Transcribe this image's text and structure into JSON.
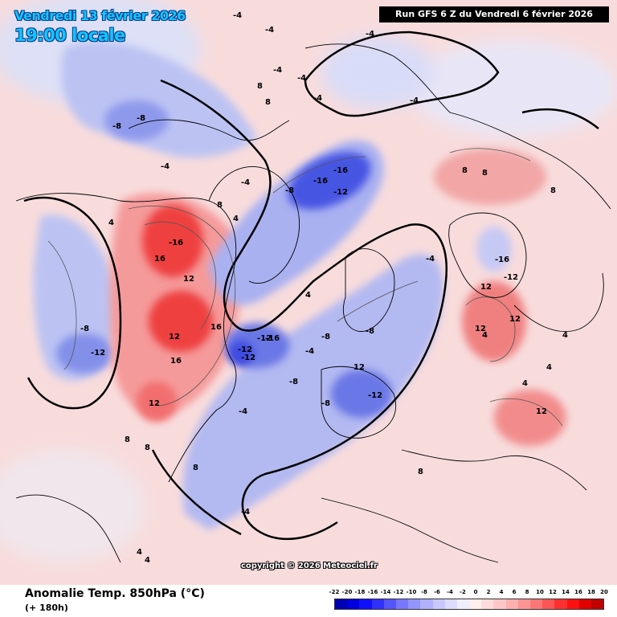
{
  "header": {
    "valid_date": "Vendredi 13 février 2026",
    "valid_time": "19:00 locale",
    "run_info": "Run GFS 6 Z du Vendredi 6 février 2026"
  },
  "map": {
    "copyright": "copyright © 2026 Meteociel.fr",
    "projection": "polar stereographic (north pole)",
    "zero_contour_color": "#000000",
    "contour_labels": [
      {
        "text": "-4"
      },
      {
        "text": "-4"
      },
      {
        "text": "-4"
      },
      {
        "text": "-4"
      },
      {
        "text": "-8"
      },
      {
        "text": "-8"
      },
      {
        "text": "-4"
      },
      {
        "text": "8"
      },
      {
        "text": "8"
      },
      {
        "text": "-4"
      },
      {
        "text": "-16"
      },
      {
        "text": "-16"
      },
      {
        "text": "-12"
      },
      {
        "text": "-8"
      },
      {
        "text": "-4"
      },
      {
        "text": "-4"
      },
      {
        "text": "-4"
      },
      {
        "text": "-16"
      },
      {
        "text": "16"
      },
      {
        "text": "12"
      },
      {
        "text": "16"
      },
      {
        "text": "16"
      },
      {
        "text": "12"
      },
      {
        "text": "12"
      },
      {
        "text": "-8"
      },
      {
        "text": "-12"
      },
      {
        "text": "8"
      },
      {
        "text": "4"
      },
      {
        "text": "-12"
      },
      {
        "text": "-16"
      },
      {
        "text": "-12"
      },
      {
        "text": "-12"
      },
      {
        "text": "-8"
      },
      {
        "text": "-4"
      },
      {
        "text": "4"
      },
      {
        "text": "-4"
      },
      {
        "text": "-8"
      },
      {
        "text": "-8"
      },
      {
        "text": "-12"
      },
      {
        "text": "-8"
      },
      {
        "text": "-4"
      },
      {
        "text": "-4"
      },
      {
        "text": "8"
      },
      {
        "text": "8"
      },
      {
        "text": "8"
      },
      {
        "text": "12"
      },
      {
        "text": "-16"
      },
      {
        "text": "-12"
      },
      {
        "text": "12"
      },
      {
        "text": "12"
      },
      {
        "text": "12"
      },
      {
        "text": "8"
      },
      {
        "text": "12"
      },
      {
        "text": "4"
      },
      {
        "text": "4"
      },
      {
        "text": "8"
      },
      {
        "text": "8"
      },
      {
        "text": "8"
      },
      {
        "text": "4"
      },
      {
        "text": "4"
      },
      {
        "text": "4"
      },
      {
        "text": "4"
      },
      {
        "text": "4"
      }
    ]
  },
  "legend": {
    "field_title": "Anomalie Temp. 850hPa (°C)",
    "forecast_hour": "(+ 180h)",
    "scale_values": [
      "-22",
      "-20",
      "-18",
      "-16",
      "-14",
      "-12",
      "-10",
      "-8",
      "-6",
      "-4",
      "-2",
      "0",
      "2",
      "4",
      "6",
      "8",
      "10",
      "12",
      "14",
      "16",
      "18",
      "20"
    ],
    "scale_colors": [
      "#0000b4",
      "#0000dc",
      "#1010ff",
      "#3030ff",
      "#5555ff",
      "#7777ff",
      "#9494ff",
      "#b0b0ff",
      "#c8c8ff",
      "#dcdcff",
      "#eeeeff",
      "#ffeeee",
      "#ffdcdc",
      "#ffc8c8",
      "#ffb0b0",
      "#ff9494",
      "#ff7777",
      "#ff5555",
      "#ff3030",
      "#ff1010",
      "#e00000",
      "#c00000"
    ]
  }
}
